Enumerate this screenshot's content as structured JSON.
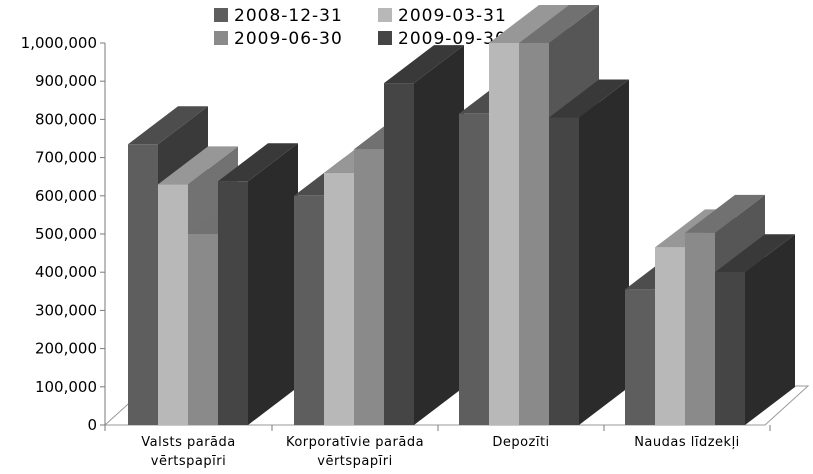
{
  "chart_data": {
    "type": "bar",
    "categories": [
      [
        "Valsts parāda",
        "vērtspapīri"
      ],
      [
        "Korporatīvie parāda",
        "vērtspapīri"
      ],
      [
        "Depozīti"
      ],
      [
        "Naudas līdzekļi"
      ]
    ],
    "series": [
      {
        "name": "2008-12-31",
        "color": "#5e5e5e",
        "values": [
          735000,
          600000,
          815000,
          355000
        ]
      },
      {
        "name": "2009-03-31",
        "color": "#b8b8b8",
        "values": [
          630000,
          660000,
          1000000,
          465000
        ]
      },
      {
        "name": "2009-06-30",
        "color": "#8a8a8a",
        "values": [
          500000,
          722000,
          1000000,
          503000
        ]
      },
      {
        "name": "2009-09-30",
        "color": "#454545",
        "values": [
          638000,
          895000,
          805000,
          400000
        ]
      }
    ],
    "ylim": [
      0,
      1000000
    ],
    "yticks": [
      "0",
      "100,000",
      "200,000",
      "300,000",
      "400,000",
      "500,000",
      "600,000",
      "700,000",
      "800,000",
      "900,000",
      "1,000,000"
    ],
    "legend_position": "top",
    "grid": false
  }
}
